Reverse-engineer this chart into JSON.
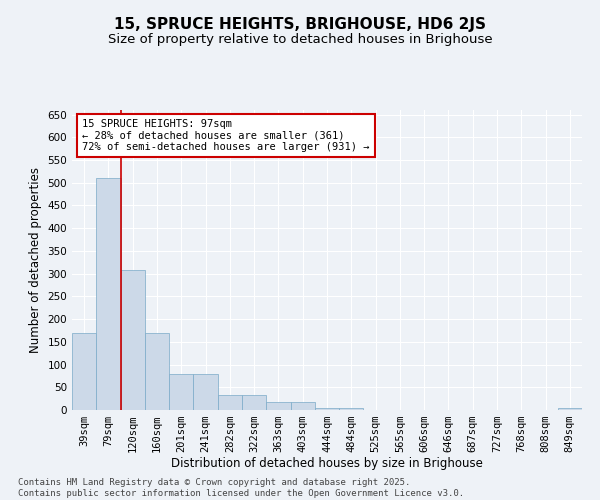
{
  "title": "15, SPRUCE HEIGHTS, BRIGHOUSE, HD6 2JS",
  "subtitle": "Size of property relative to detached houses in Brighouse",
  "xlabel": "Distribution of detached houses by size in Brighouse",
  "ylabel": "Number of detached properties",
  "bar_color": "#ccd9e8",
  "bar_edge_color": "#7aaac8",
  "bin_labels": [
    "39sqm",
    "79sqm",
    "120sqm",
    "160sqm",
    "201sqm",
    "241sqm",
    "282sqm",
    "322sqm",
    "363sqm",
    "403sqm",
    "444sqm",
    "484sqm",
    "525sqm",
    "565sqm",
    "606sqm",
    "646sqm",
    "687sqm",
    "727sqm",
    "768sqm",
    "808sqm",
    "849sqm"
  ],
  "bar_values": [
    170,
    510,
    308,
    170,
    80,
    80,
    33,
    33,
    18,
    18,
    5,
    5,
    1,
    1,
    0,
    0,
    0,
    0,
    0,
    0,
    4
  ],
  "ylim": [
    0,
    660
  ],
  "yticks": [
    0,
    50,
    100,
    150,
    200,
    250,
    300,
    350,
    400,
    450,
    500,
    550,
    600,
    650
  ],
  "marker_label": "15 SPRUCE HEIGHTS: 97sqm",
  "annotation_line1": "← 28% of detached houses are smaller (361)",
  "annotation_line2": "72% of semi-detached houses are larger (931) →",
  "annotation_box_color": "#ffffff",
  "annotation_box_edge": "#cc0000",
  "marker_line_color": "#cc0000",
  "footer_line1": "Contains HM Land Registry data © Crown copyright and database right 2025.",
  "footer_line2": "Contains public sector information licensed under the Open Government Licence v3.0.",
  "background_color": "#eef2f7",
  "grid_color": "#ffffff",
  "title_fontsize": 11,
  "subtitle_fontsize": 9.5,
  "axis_label_fontsize": 8.5,
  "tick_fontsize": 7.5,
  "annotation_fontsize": 7.5,
  "footer_fontsize": 6.5
}
